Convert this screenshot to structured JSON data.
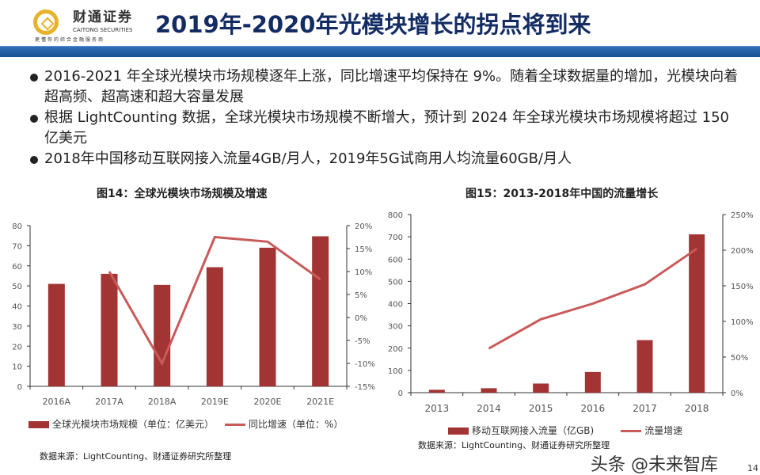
{
  "header": {
    "logo_cn": "财通证券",
    "logo_en": "CAITONG SECURITIES",
    "logo_tagline": "更懂你的综合金融服务商",
    "title": "2019年-2020年光模块增长的拐点将到来"
  },
  "bullets": [
    "2016-2021 年全球光模块市场规模逐年上涨，同比增速平均保持在 9%。随着全球数据量的增加，光模块向着超高频、超高速和超大容量发展",
    "根据 LightCounting 数据，全球光模块市场规模不断增大，预计到 2024 年全球光模块市场规模将超过 150 亿美元",
    "2018年中国移动互联网接入流量4GB/月人，2019年5G试商用人均流量60GB/月人"
  ],
  "chart_data": [
    {
      "type": "bar+line",
      "title": "图14：全球光模块市场规模及增速",
      "categories": [
        "2016A",
        "2017A",
        "2018A",
        "2019E",
        "2020E",
        "2021E"
      ],
      "series": [
        {
          "name": "全球光模块市场规模（单位：亿美元）",
          "type": "bar",
          "axis": "left",
          "values": [
            51,
            56,
            50.5,
            59.3,
            69,
            74.7
          ]
        },
        {
          "name": "同比增速（单位：%）",
          "type": "line",
          "axis": "right",
          "values": [
            null,
            10,
            -10,
            17.5,
            16.5,
            8.3
          ]
        }
      ],
      "ylim": [
        0,
        80
      ],
      "yticks": [
        "0",
        "10",
        "20",
        "30",
        "40",
        "50",
        "60",
        "70",
        "80"
      ],
      "y2lim": [
        -15,
        20
      ],
      "y2ticks": [
        "-15%",
        "-10%",
        "-5%",
        "0%",
        "5%",
        "10%",
        "15%",
        "20%"
      ],
      "legend": "bottom",
      "grid": false,
      "source": "数据来源：LightCounting、财通证券研究所整理"
    },
    {
      "type": "bar+line",
      "title": "图15：2013-2018年中国的流量增长",
      "categories": [
        "2013",
        "2014",
        "2015",
        "2016",
        "2017",
        "2018"
      ],
      "series": [
        {
          "name": "移动互联网接入流量（亿GB)",
          "type": "bar",
          "axis": "left",
          "values": [
            13,
            20,
            41,
            93,
            236,
            711
          ]
        },
        {
          "name": "流量增速",
          "type": "line",
          "axis": "right",
          "values": [
            null,
            62,
            103,
            125,
            152,
            202
          ]
        }
      ],
      "ylim": [
        0,
        800
      ],
      "yticks": [
        "0",
        "100",
        "200",
        "300",
        "400",
        "500",
        "600",
        "700",
        "800"
      ],
      "y2lim": [
        0,
        250
      ],
      "y2ticks": [
        "0%",
        "50%",
        "100%",
        "150%",
        "200%",
        "250%"
      ],
      "legend": "bottom",
      "grid": false,
      "source": "数据来源：LightCounting、财通证券研究所整理"
    }
  ],
  "colors": {
    "bar": "#a23434",
    "line": "#c85a5a",
    "title": "#132c63",
    "band": "#1b4f94"
  },
  "watermark": "头条 @未来智库",
  "page_number": "14"
}
